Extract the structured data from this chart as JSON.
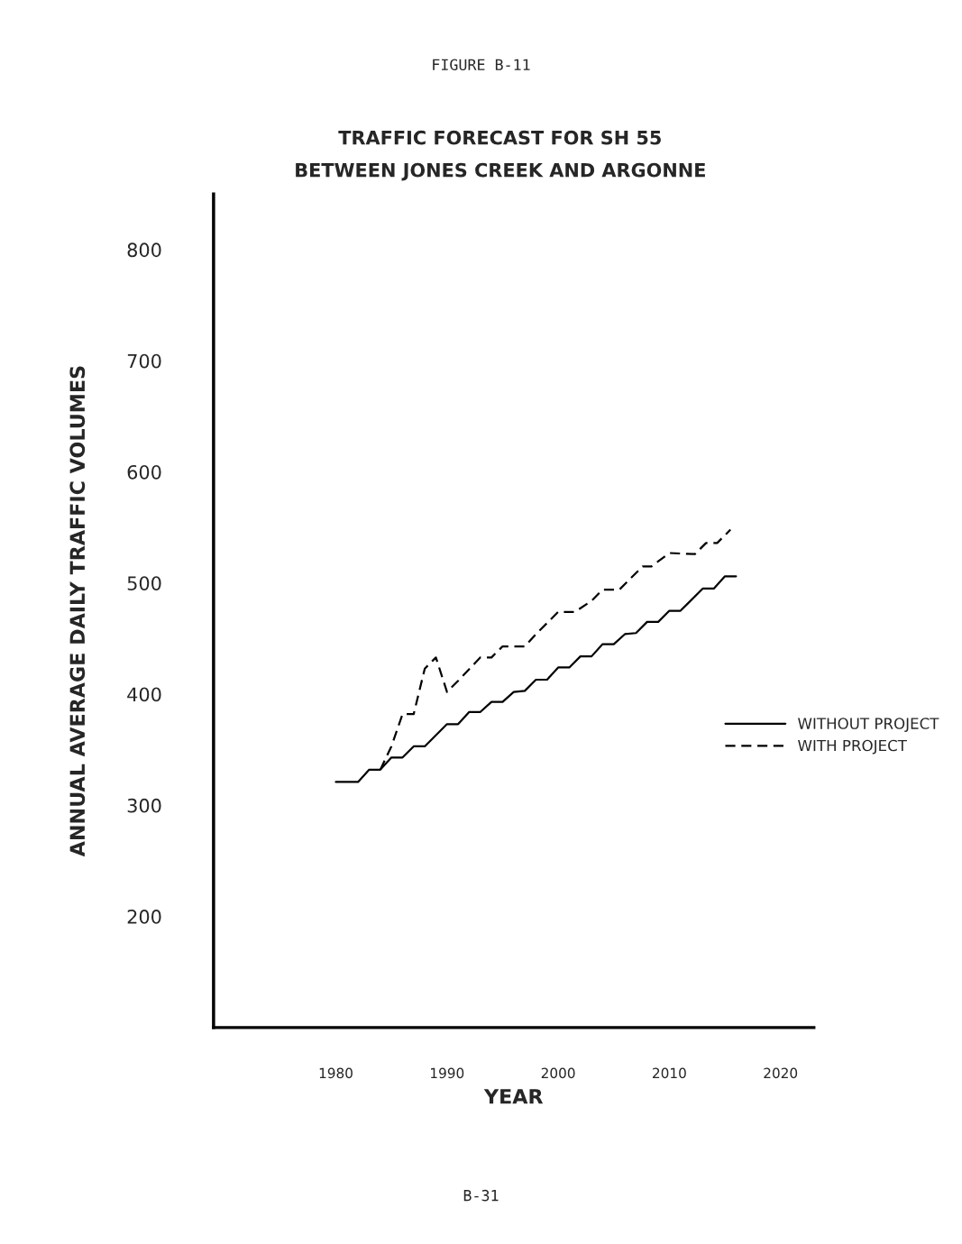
{
  "chart_data": {
    "type": "line",
    "title": "TRAFFIC FORECAST FOR SH 55\nBETWEEN JONES CREEK AND ARGONNE",
    "xlabel": "YEAR",
    "ylabel": "ANNUAL AVERAGE DAILY TRAFFIC VOLUMES",
    "annotations": [
      "FIGURE B-11",
      "B-31"
    ],
    "xlim": [
      1969,
      2023
    ],
    "ylim": [
      100,
      850
    ],
    "xticks": [
      1980,
      1990,
      2000,
      2010,
      2020
    ],
    "yticks": [
      200,
      300,
      400,
      500,
      600,
      700,
      800
    ],
    "grid": false,
    "legend": "right",
    "marker": "none",
    "series": [
      {
        "name": "WITHOUT PROJECT",
        "color": "#000000",
        "line_style": "solid",
        "x": [
          1980,
          1982,
          1983,
          1984,
          1985,
          1986,
          1987,
          1988,
          1990,
          1991,
          1992,
          1993,
          1994,
          1995,
          1996,
          1997,
          1998,
          1999,
          2000,
          2001,
          2002,
          2003,
          2004,
          2005,
          2006,
          2007,
          2008,
          2009,
          2010,
          2011,
          2013,
          2014,
          2015,
          2016
        ],
        "values": [
          321,
          321,
          332,
          332,
          343,
          343,
          353,
          353,
          373,
          373,
          384,
          384,
          393,
          393,
          402,
          403,
          413,
          413,
          424,
          424,
          434,
          434,
          445,
          445,
          454,
          455,
          465,
          465,
          475,
          475,
          495,
          495,
          506,
          506
        ]
      },
      {
        "name": "WITH PROJECT",
        "color": "#000000",
        "line_style": "dashed",
        "x": [
          1984,
          1985,
          1986,
          1987,
          1988,
          1989,
          1990,
          1991,
          1993,
          1994,
          1995,
          1997,
          1998,
          2000,
          2001.5,
          2003,
          2004,
          2005.5,
          2007.6,
          2008.4,
          2010,
          2012.3,
          2013.3,
          2014.3,
          2015.5
        ],
        "values": [
          332,
          353,
          382,
          382,
          423,
          433,
          402,
          412,
          433,
          433,
          443,
          443,
          454,
          474,
          474,
          484,
          494,
          494,
          515,
          515,
          527,
          526,
          536,
          536,
          548
        ]
      }
    ]
  }
}
